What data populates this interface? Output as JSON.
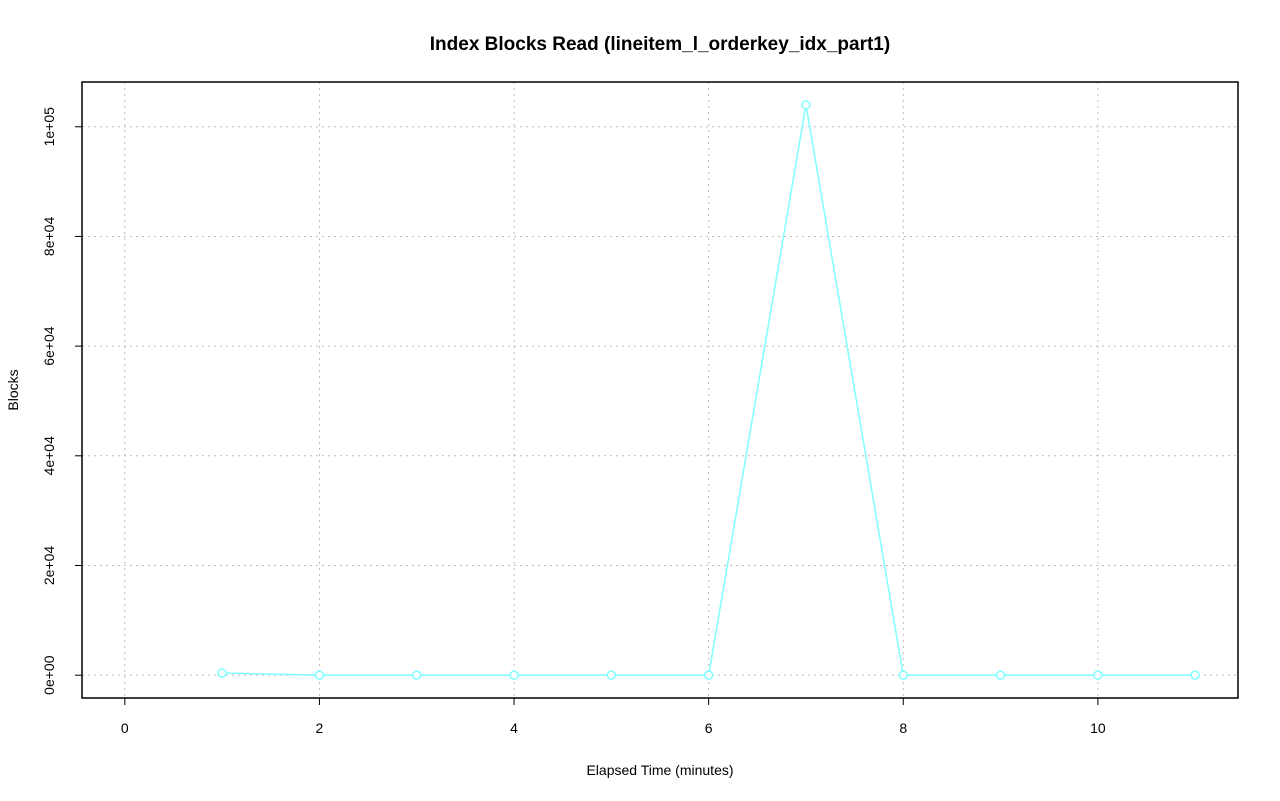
{
  "chart_data": {
    "type": "line",
    "title": "Index Blocks Read (lineitem_l_orderkey_idx_part1)",
    "x_label": "Elapsed Time (minutes)",
    "y_label": "Blocks",
    "x": [
      1,
      2,
      3,
      4,
      5,
      6,
      7,
      8,
      9,
      10,
      11
    ],
    "series": [
      {
        "name": "lineitem_l_orderkey_idx_part1",
        "color": "#7fffff",
        "values": [
          400,
          0,
          0,
          0,
          0,
          0,
          104000,
          0,
          0,
          0,
          0
        ]
      }
    ],
    "xlim": [
      -0.44,
      11.44
    ],
    "xticks": [
      0,
      2,
      4,
      6,
      8,
      10
    ],
    "ylim": [
      -4160,
      108160
    ],
    "yticks": [
      {
        "value": 0,
        "label": "0e+00"
      },
      {
        "value": 20000,
        "label": "2e+04"
      },
      {
        "value": 40000,
        "label": "4e+04"
      },
      {
        "value": 60000,
        "label": "6e+04"
      },
      {
        "value": 80000,
        "label": "8e+04"
      },
      {
        "value": 100000,
        "label": "1e+05"
      }
    ],
    "grid": true
  }
}
